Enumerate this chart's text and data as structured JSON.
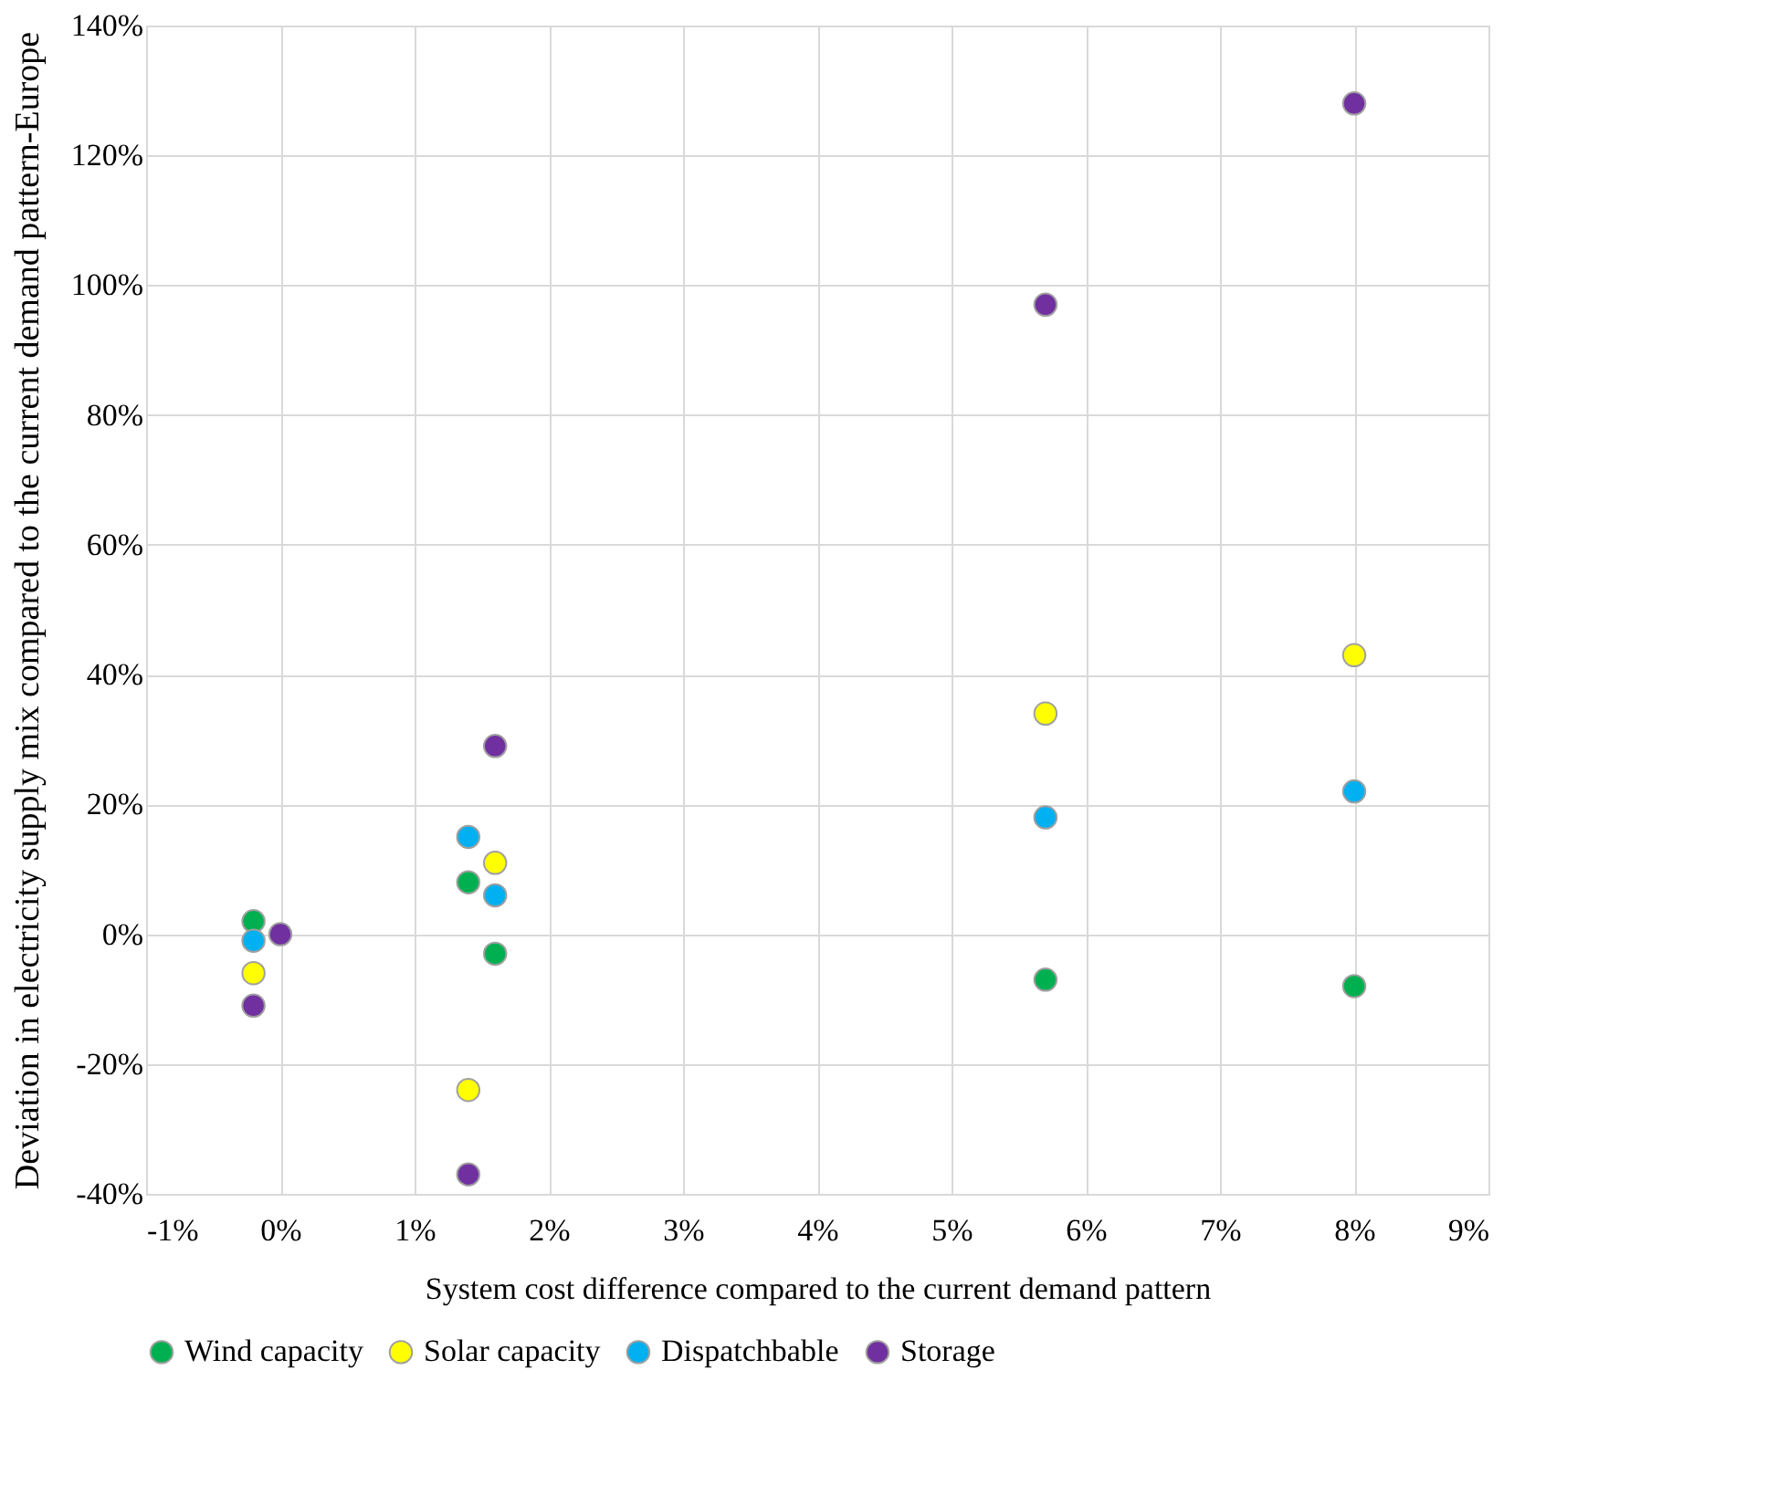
{
  "chart_data": {
    "type": "scatter",
    "xlabel": "System cost difference  compared to the current demand pattern",
    "ylabel": "Deviation in electricity  supply mix compared to the current demand pattern-Europe",
    "series": [
      {
        "name": "Wind capacity",
        "color": "#00b050",
        "x": [
          -0.2,
          1.4,
          1.6,
          5.7,
          8
        ],
        "values": [
          2,
          8,
          -3,
          -7,
          -8
        ]
      },
      {
        "name": "Solar capacity",
        "color": "#ffff00",
        "x": [
          -0.2,
          1.4,
          1.6,
          5.7,
          8
        ],
        "values": [
          -6,
          -24,
          11,
          34,
          43
        ]
      },
      {
        "name": "Dispatchbable",
        "color": "#00b0f0",
        "x": [
          -0.2,
          1.4,
          1.6,
          5.7,
          8
        ],
        "values": [
          -1,
          15,
          6,
          18,
          22
        ]
      },
      {
        "name": "Storage",
        "color": "#7030a0",
        "x": [
          -0.2,
          0,
          1.4,
          1.6,
          5.7,
          8
        ],
        "values": [
          -11,
          0,
          -37,
          29,
          97,
          128
        ]
      }
    ],
    "xlim": [
      -1,
      9
    ],
    "xticks": [
      {
        "value": -1,
        "label": "-1%"
      },
      {
        "value": 0,
        "label": "0%"
      },
      {
        "value": 1,
        "label": "1%"
      },
      {
        "value": 2,
        "label": "2%"
      },
      {
        "value": 3,
        "label": "3%"
      },
      {
        "value": 4,
        "label": "4%"
      },
      {
        "value": 5,
        "label": "5%"
      },
      {
        "value": 6,
        "label": "6%"
      },
      {
        "value": 7,
        "label": "7%"
      },
      {
        "value": 8,
        "label": "8%"
      },
      {
        "value": 9,
        "label": "9%"
      }
    ],
    "ylim": [
      -40,
      140
    ],
    "yticks": [
      {
        "value": -40,
        "label": "-40%"
      },
      {
        "value": -20,
        "label": "-20%"
      },
      {
        "value": 0,
        "label": "0%"
      },
      {
        "value": 20,
        "label": "20%"
      },
      {
        "value": 40,
        "label": "40%"
      },
      {
        "value": 60,
        "label": "60%"
      },
      {
        "value": 80,
        "label": "80%"
      },
      {
        "value": 100,
        "label": "100%"
      },
      {
        "value": 120,
        "label": "120%"
      },
      {
        "value": 140,
        "label": "140%"
      }
    ],
    "grid": true,
    "legend": "bottom",
    "marker": "circle"
  }
}
